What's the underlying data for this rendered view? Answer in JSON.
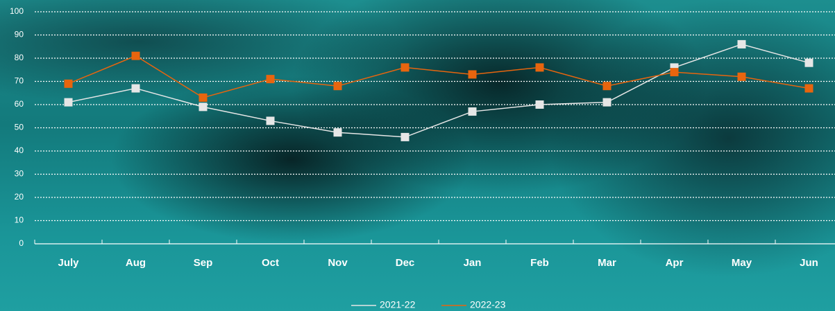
{
  "chart_data": {
    "type": "line",
    "categories": [
      "July",
      "Aug",
      "Sep",
      "Oct",
      "Nov",
      "Dec",
      "Jan",
      "Feb",
      "Mar",
      "Apr",
      "May",
      "Jun"
    ],
    "series": [
      {
        "name": "2021-22",
        "color": "#e6e6e6",
        "values": [
          61,
          67,
          59,
          53,
          48,
          46,
          57,
          60,
          61,
          76,
          86,
          78
        ]
      },
      {
        "name": "2022-23",
        "color": "#e8650e",
        "values": [
          69,
          81,
          63,
          71,
          68,
          76,
          73,
          76,
          68,
          74,
          72,
          67
        ]
      }
    ],
    "ylim": [
      0,
      100
    ],
    "yticks": [
      0,
      10,
      20,
      30,
      40,
      50,
      60,
      70,
      80,
      90,
      100
    ],
    "grid": true
  }
}
